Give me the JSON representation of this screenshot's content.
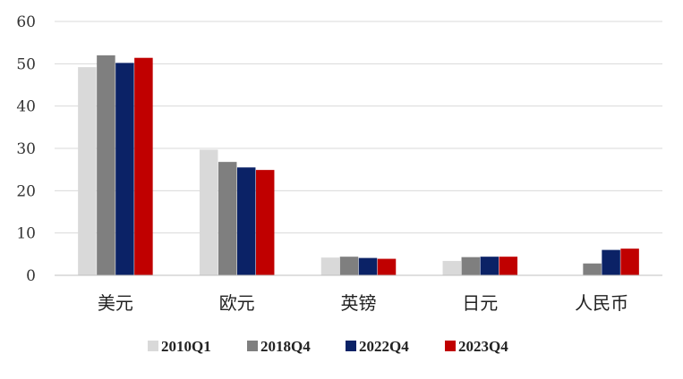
{
  "chart_data": {
    "type": "bar",
    "categories": [
      "美元",
      "欧元",
      "英镑",
      "日元",
      "人民币"
    ],
    "series": [
      {
        "name": "2010Q1",
        "values": [
          49.2,
          29.7,
          4.2,
          3.4,
          0
        ],
        "color": "#d9d9d9"
      },
      {
        "name": "2018Q4",
        "values": [
          52.0,
          26.8,
          4.4,
          4.3,
          2.8
        ],
        "color": "#7f7f7f"
      },
      {
        "name": "2022Q4",
        "values": [
          50.2,
          25.5,
          4.1,
          4.4,
          6.0
        ],
        "color": "#0b2266"
      },
      {
        "name": "2023Q4",
        "values": [
          51.4,
          24.9,
          3.9,
          4.4,
          6.3
        ],
        "color": "#c00000"
      }
    ],
    "yticks": [
      0,
      10,
      20,
      30,
      40,
      50,
      60
    ],
    "ylim": [
      0,
      60
    ],
    "grid": true,
    "legend_position": "bottom"
  }
}
